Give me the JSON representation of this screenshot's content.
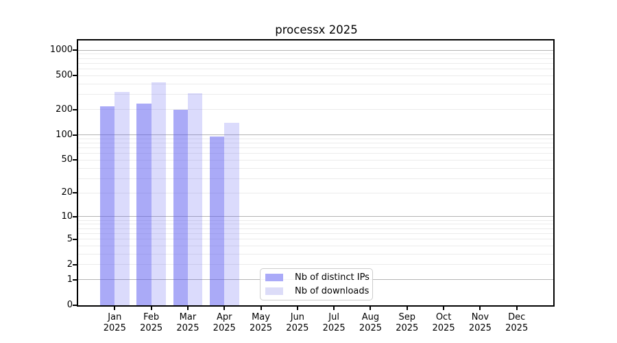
{
  "page": {
    "background": "#ffffff"
  },
  "chart_data": {
    "type": "bar",
    "title": "processx 2025",
    "months": [
      "Jan",
      "Feb",
      "Mar",
      "Apr",
      "May",
      "Jun",
      "Jul",
      "Aug",
      "Sep",
      "Oct",
      "Nov",
      "Dec"
    ],
    "year_label": "2025",
    "series": [
      {
        "name": "Nb of distinct IPs",
        "fill": "rgba(85,85,240,0.5)",
        "legend_color": "#aaaaf8",
        "values": [
          218,
          233,
          200,
          96,
          null,
          null,
          null,
          null,
          null,
          null,
          null,
          null
        ]
      },
      {
        "name": "Nb of downloads",
        "fill": "rgba(85,85,240,0.21)",
        "legend_color": "#dcdcf8",
        "values": [
          322,
          420,
          310,
          140,
          null,
          null,
          null,
          null,
          null,
          null,
          null,
          null
        ]
      }
    ],
    "y_ticks": [
      0,
      1,
      2,
      5,
      10,
      20,
      50,
      100,
      200,
      500,
      1000
    ],
    "y_scale": "log1p",
    "y_max": 1300,
    "ylim": [
      0,
      1300
    ],
    "grid": {
      "major_values": [
        1,
        10,
        100,
        1000
      ],
      "major_color": "#b4b4b4",
      "minor_color": "#ebebeb"
    },
    "axis_color": "#000000",
    "legend_position": "lower center"
  }
}
